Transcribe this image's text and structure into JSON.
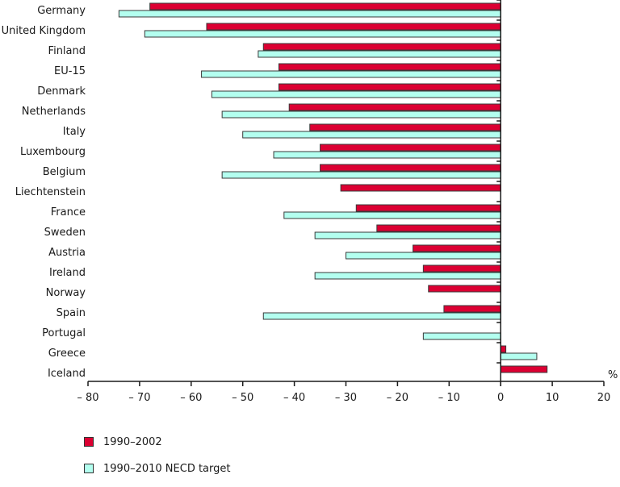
{
  "chart_data": {
    "type": "bar",
    "orientation": "horizontal",
    "title": "",
    "xlabel": "%",
    "ylabel": "",
    "xlim": [
      -80,
      20
    ],
    "x_ticks": [
      -80,
      -70,
      -60,
      -50,
      -40,
      -30,
      -20,
      -10,
      0,
      10,
      20
    ],
    "x_tick_labels": [
      "– 80",
      "– 70",
      "– 60",
      "– 50",
      "– 40",
      "– 30",
      "– 20",
      "– 10",
      "0",
      "10",
      "20"
    ],
    "grid": false,
    "legend_position": "bottom-left",
    "categories": [
      "Germany",
      "United Kingdom",
      "Finland",
      "EU-15",
      "Denmark",
      "Netherlands",
      "Italy",
      "Luxembourg",
      "Belgium",
      "Liechtenstein",
      "France",
      "Sweden",
      "Austria",
      "Ireland",
      "Norway",
      "Spain",
      "Portugal",
      "Greece",
      "Iceland"
    ],
    "series": [
      {
        "name": "1990–2002",
        "color": "#DC0032",
        "values": [
          -68,
          -57,
          -46,
          -43,
          -43,
          -41,
          -37,
          -35,
          -35,
          -31,
          -28,
          -24,
          -17,
          -15,
          -14,
          -11,
          null,
          1,
          9
        ]
      },
      {
        "name": "1990–2010 NECD target",
        "color": "#B3FFEF",
        "values": [
          -74,
          -69,
          -47,
          -58,
          -56,
          -54,
          -50,
          -44,
          -54,
          null,
          -42,
          -36,
          -30,
          -36,
          null,
          -46,
          -15,
          7,
          null
        ]
      }
    ]
  }
}
